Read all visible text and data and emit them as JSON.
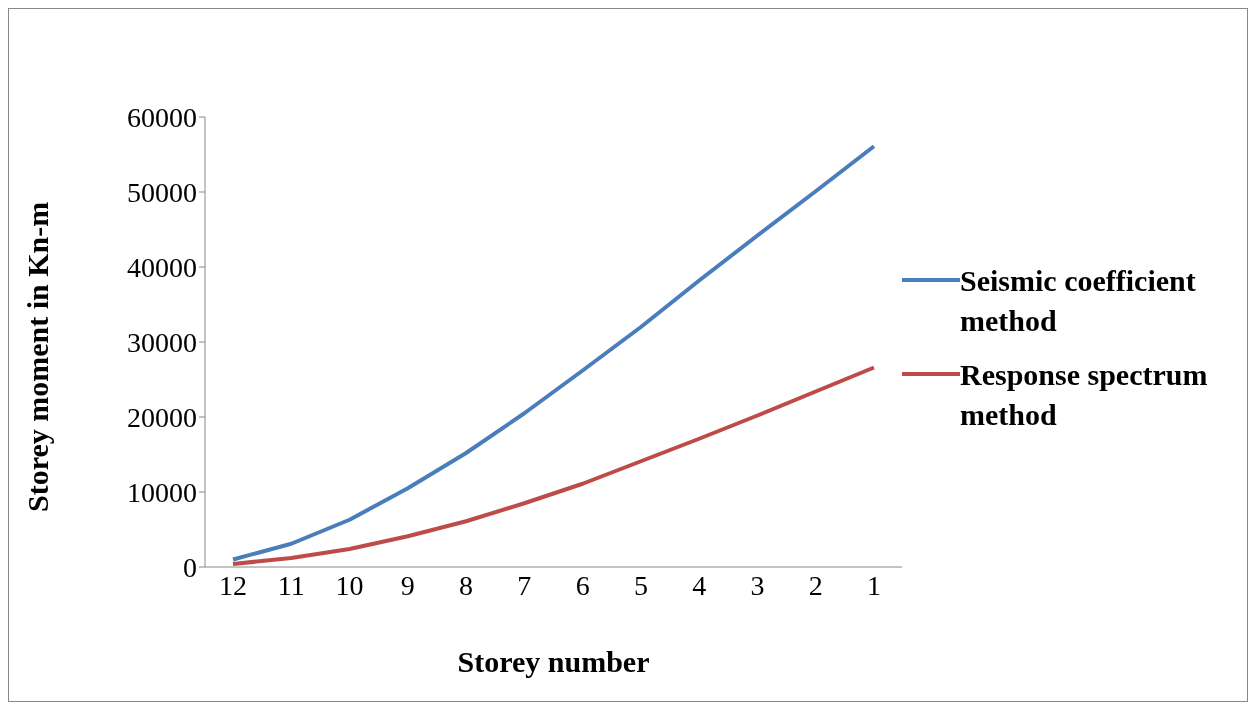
{
  "chart_data": {
    "type": "line",
    "xlabel": "Storey number",
    "ylabel": "Storey moment in Kn-m",
    "categories": [
      "12",
      "11",
      "10",
      "9",
      "8",
      "7",
      "6",
      "5",
      "4",
      "3",
      "2",
      "1"
    ],
    "series": [
      {
        "name": "Seismic coefficient method",
        "color": "#4a7ebb",
        "values": [
          1000,
          3100,
          6300,
          10500,
          15200,
          20500,
          26200,
          32000,
          38200,
          44200,
          50100,
          56100
        ]
      },
      {
        "name": "Response spectrum method",
        "color": "#be4b48",
        "values": [
          400,
          1200,
          2400,
          4100,
          6100,
          8500,
          11100,
          14100,
          17100,
          20200,
          23400,
          26600
        ]
      }
    ],
    "ylim": [
      0,
      60000
    ],
    "yticks": [
      0,
      10000,
      20000,
      30000,
      40000,
      50000,
      60000
    ],
    "grid": false,
    "legend": "right",
    "marker": "none",
    "line_style": "solid"
  }
}
